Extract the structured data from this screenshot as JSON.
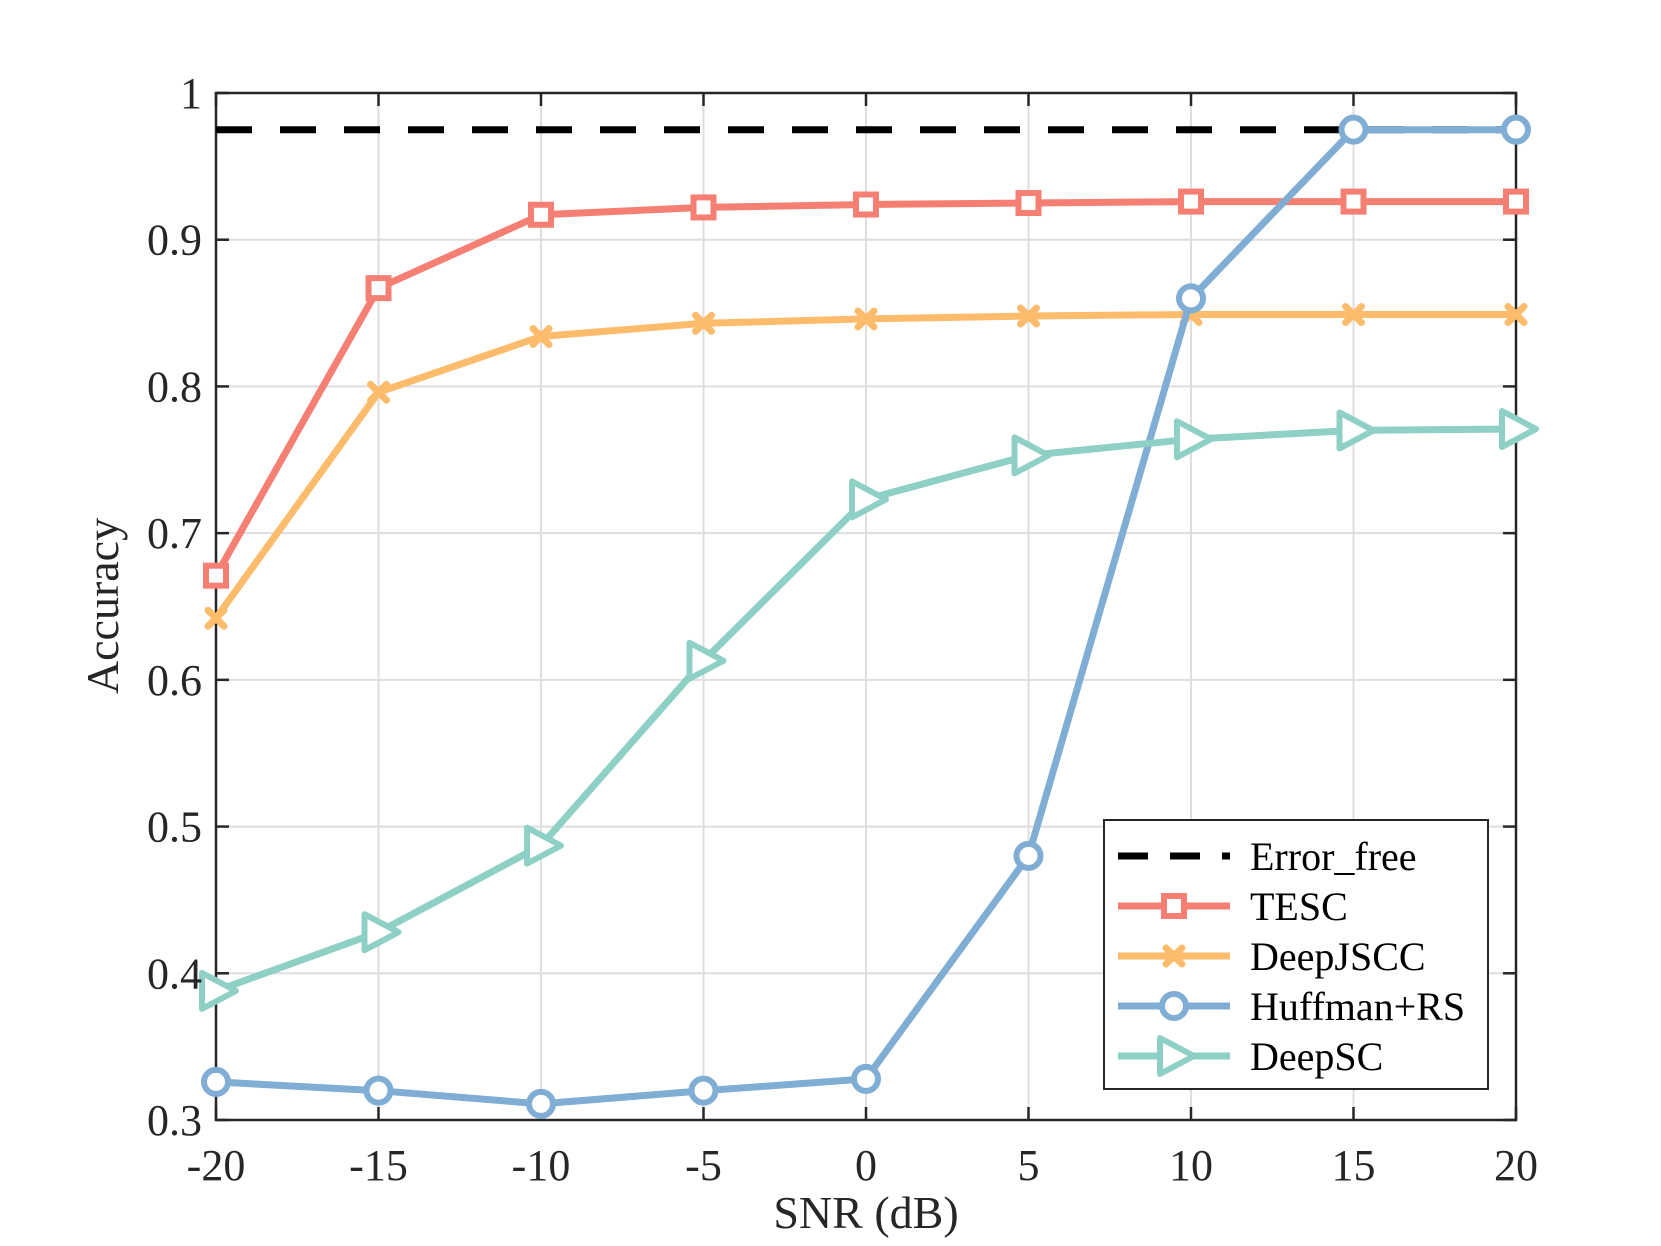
{
  "chart_data": {
    "type": "line",
    "title": "",
    "xlabel": "SNR (dB)",
    "ylabel": "Accuracy",
    "x": [
      -20,
      -15,
      -10,
      -5,
      0,
      5,
      10,
      15,
      20
    ],
    "x_tick_labels": [
      "-20",
      "-15",
      "-10",
      "-5",
      "0",
      "5",
      "10",
      "15",
      "20"
    ],
    "y_tick_labels": [
      "0.3",
      "0.4",
      "0.5",
      "0.6",
      "0.7",
      "0.8",
      "0.9",
      "1"
    ],
    "y_ticks": [
      0.3,
      0.4,
      0.5,
      0.6,
      0.7,
      0.8,
      0.9,
      1.0
    ],
    "xlim": [
      -20,
      20
    ],
    "ylim": [
      0.3,
      1.0
    ],
    "grid": true,
    "legend_position": "bottom-right",
    "series": [
      {
        "name": "Error_free",
        "color": "#000000",
        "marker": "none",
        "dashed": true,
        "values": [
          0.975,
          0.975,
          0.975,
          0.975,
          0.975,
          0.975,
          0.975,
          0.975,
          0.975
        ]
      },
      {
        "name": "TESC",
        "color": "#f47f72",
        "marker": "square",
        "values": [
          0.671,
          0.867,
          0.917,
          0.922,
          0.924,
          0.925,
          0.926,
          0.926,
          0.926
        ]
      },
      {
        "name": "DeepJSCC",
        "color": "#fdbb6c",
        "marker": "x",
        "values": [
          0.642,
          0.796,
          0.834,
          0.843,
          0.846,
          0.848,
          0.849,
          0.849,
          0.849
        ]
      },
      {
        "name": "Huffman+RS",
        "color": "#7fadd3",
        "marker": "circle",
        "values": [
          0.326,
          0.32,
          0.311,
          0.32,
          0.328,
          0.48,
          0.86,
          0.975,
          0.975
        ]
      },
      {
        "name": "DeepSC",
        "color": "#8ecfc6",
        "marker": "triangle-right",
        "values": [
          0.388,
          0.428,
          0.487,
          0.613,
          0.723,
          0.753,
          0.764,
          0.77,
          0.771
        ]
      }
    ]
  }
}
